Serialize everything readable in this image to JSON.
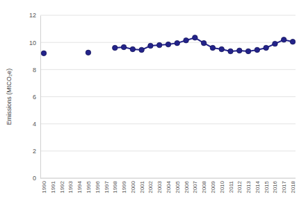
{
  "chart_data": {
    "type": "line",
    "y_label": "Emissions (MtCO₂e)",
    "categories": [
      "1990",
      "1991",
      "1992",
      "1993",
      "1994",
      "1995",
      "1996",
      "1997",
      "1998",
      "1999",
      "2000",
      "2001",
      "2002",
      "2003",
      "2004",
      "2005",
      "2006",
      "2007",
      "2008",
      "2009",
      "2010",
      "2011",
      "2012",
      "2013",
      "2014",
      "2015",
      "2016",
      "2017",
      "2018"
    ],
    "values": [
      9.2,
      null,
      null,
      null,
      null,
      9.25,
      null,
      null,
      9.6,
      9.65,
      9.5,
      9.45,
      9.75,
      9.8,
      9.85,
      9.95,
      10.15,
      10.35,
      9.95,
      9.6,
      9.5,
      9.35,
      9.4,
      9.35,
      9.45,
      9.6,
      9.9,
      10.2,
      10.05
    ],
    "color": "#23238a",
    "marker": "circle",
    "ylim": [
      0,
      12
    ],
    "yticks": [
      0,
      2,
      4,
      6,
      8,
      10,
      12
    ],
    "grid": true
  }
}
